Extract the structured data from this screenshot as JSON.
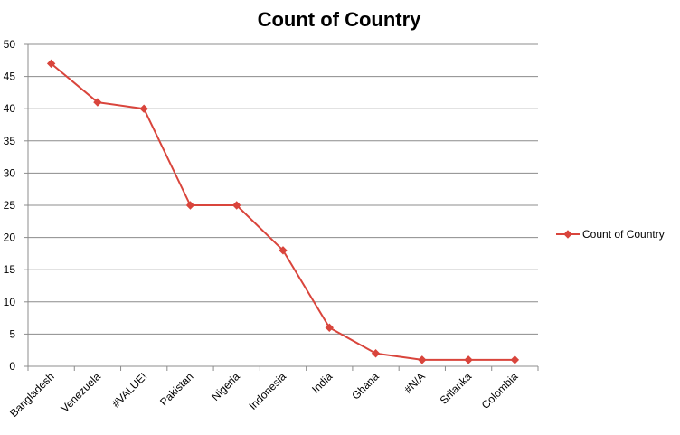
{
  "chart_data": {
    "type": "line",
    "title": "Count of Country",
    "xlabel": "",
    "ylabel": "",
    "categories": [
      "Bangladesh",
      "Venezuela",
      "#VALUE!",
      "Pakistan",
      "Nigeria",
      "Indonesia",
      "India",
      "Ghana",
      "#N/A",
      "Srilanka",
      "Colombia"
    ],
    "series": [
      {
        "name": "Count of Country",
        "values": [
          47,
          41,
          40,
          25,
          25,
          18,
          6,
          2,
          1,
          1,
          1
        ],
        "color": "#d9453c"
      }
    ],
    "ylim": [
      0,
      50
    ],
    "yticks": [
      0,
      5,
      10,
      15,
      20,
      25,
      30,
      35,
      40,
      45,
      50
    ],
    "grid": true,
    "legend": "right",
    "gridline_color": "#8c8c8c",
    "axis_color": "#8c8c8c",
    "marker": "diamond"
  }
}
